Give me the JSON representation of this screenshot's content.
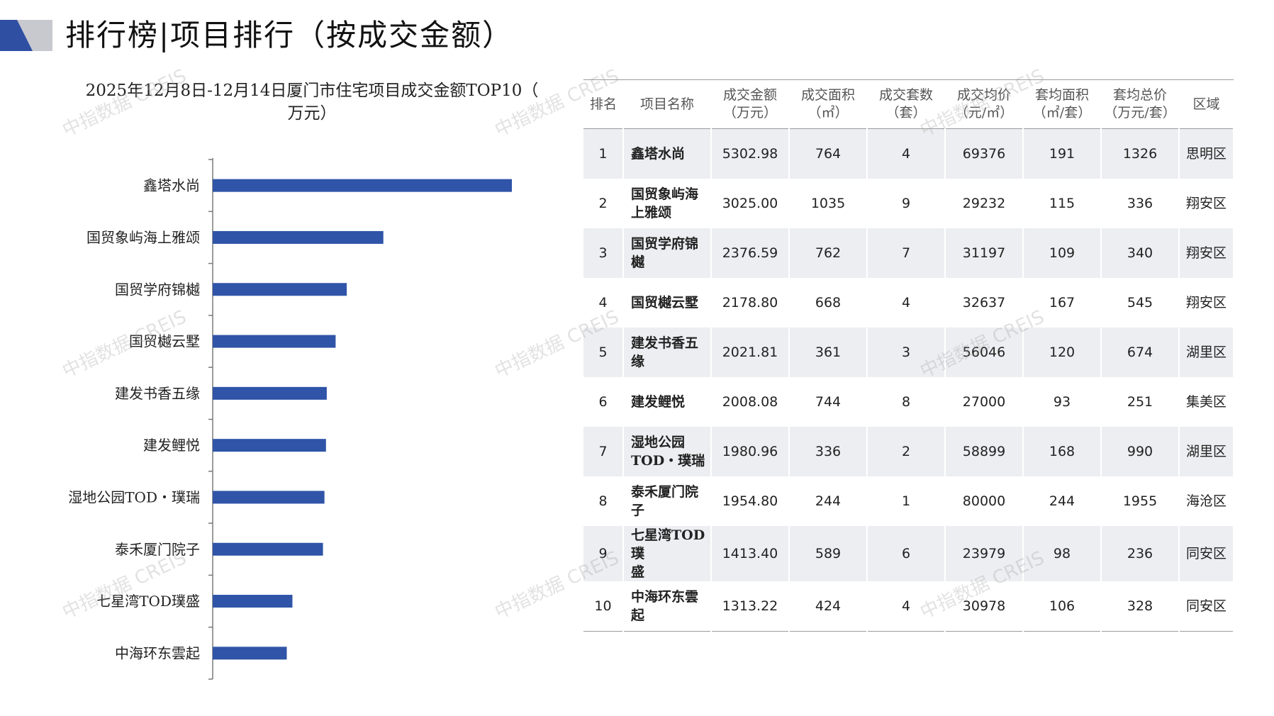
{
  "header": {
    "title": "排行榜|项目排行（按成交金额）"
  },
  "colors": {
    "bar": "#2f54a8",
    "logo_dark": "#2f4fa3",
    "logo_light": "#c8c9cf",
    "row_band": "#eceef1"
  },
  "watermark": "中指数据 CREIS",
  "chart_data": {
    "type": "bar",
    "orientation": "horizontal",
    "title": "2025年12月8日-12月14日厦门市住宅项目成交金额TOP10（万元）",
    "title_lines": [
      "2025年12月8日-12月14日厦门市住宅项目成交金额TOP10（",
      "万元）"
    ],
    "categories": [
      "鑫塔水尚",
      "国贸象屿海上雅颂",
      "国贸学府锦樾",
      "国贸樾云墅",
      "建发书香五缘",
      "建发鲤悦",
      "湿地公园TOD・璞瑞",
      "泰禾厦门院子",
      "七星湾TOD璞盛",
      "中海环东雲起"
    ],
    "values": [
      5302.98,
      3025.0,
      2376.59,
      2178.8,
      2021.81,
      2008.08,
      1980.96,
      1954.8,
      1413.4,
      1313.22
    ],
    "xlim": [
      0,
      5302.98
    ],
    "grid": false,
    "legend": "none"
  },
  "table": {
    "headers": [
      [
        "排名",
        ""
      ],
      [
        "项目名称",
        ""
      ],
      [
        "成交金额",
        "（万元）"
      ],
      [
        "成交面积",
        "（㎡）"
      ],
      [
        "成交套数",
        "（套）"
      ],
      [
        "成交均价",
        "（元/㎡）"
      ],
      [
        "套均面积",
        "（㎡/套）"
      ],
      [
        "套均总价",
        "（万元/套）"
      ],
      [
        "区域",
        ""
      ]
    ],
    "rows": [
      {
        "rank": "1",
        "name": [
          "鑫塔水尚",
          ""
        ],
        "amount": "5302.98",
        "area": "764",
        "units": "4",
        "price": "69376",
        "avg_area": "191",
        "avg_total": "1326",
        "district": "思明区"
      },
      {
        "rank": "2",
        "name": [
          "国贸象屿海",
          "上雅颂"
        ],
        "amount": "3025.00",
        "area": "1035",
        "units": "9",
        "price": "29232",
        "avg_area": "115",
        "avg_total": "336",
        "district": "翔安区"
      },
      {
        "rank": "3",
        "name": [
          "国贸学府锦",
          "樾"
        ],
        "amount": "2376.59",
        "area": "762",
        "units": "7",
        "price": "31197",
        "avg_area": "109",
        "avg_total": "340",
        "district": "翔安区"
      },
      {
        "rank": "4",
        "name": [
          "国贸樾云墅",
          ""
        ],
        "amount": "2178.80",
        "area": "668",
        "units": "4",
        "price": "32637",
        "avg_area": "167",
        "avg_total": "545",
        "district": "翔安区"
      },
      {
        "rank": "5",
        "name": [
          "建发书香五",
          "缘"
        ],
        "amount": "2021.81",
        "area": "361",
        "units": "3",
        "price": "56046",
        "avg_area": "120",
        "avg_total": "674",
        "district": "湖里区"
      },
      {
        "rank": "6",
        "name": [
          "建发鲤悦",
          ""
        ],
        "amount": "2008.08",
        "area": "744",
        "units": "8",
        "price": "27000",
        "avg_area": "93",
        "avg_total": "251",
        "district": "集美区"
      },
      {
        "rank": "7",
        "name": [
          "湿地公园",
          "TOD・璞瑞"
        ],
        "amount": "1980.96",
        "area": "336",
        "units": "2",
        "price": "58899",
        "avg_area": "168",
        "avg_total": "990",
        "district": "湖里区"
      },
      {
        "rank": "8",
        "name": [
          "泰禾厦门院",
          "子"
        ],
        "amount": "1954.80",
        "area": "244",
        "units": "1",
        "price": "80000",
        "avg_area": "244",
        "avg_total": "1955",
        "district": "海沧区"
      },
      {
        "rank": "9",
        "name": [
          "七星湾TOD璞",
          "盛"
        ],
        "amount": "1413.40",
        "area": "589",
        "units": "6",
        "price": "23979",
        "avg_area": "98",
        "avg_total": "236",
        "district": "同安区"
      },
      {
        "rank": "10",
        "name": [
          "中海环东雲",
          "起"
        ],
        "amount": "1313.22",
        "area": "424",
        "units": "4",
        "price": "30978",
        "avg_area": "106",
        "avg_total": "328",
        "district": "同安区"
      }
    ]
  }
}
